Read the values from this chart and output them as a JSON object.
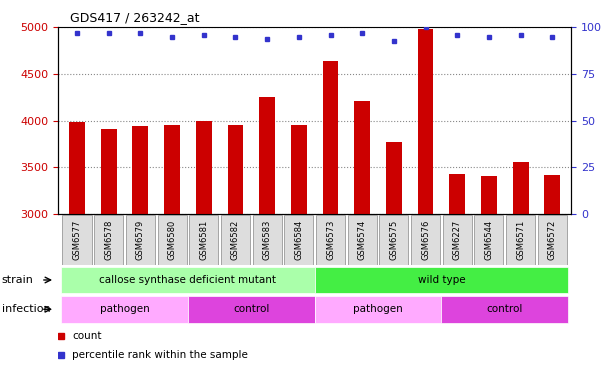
{
  "title": "GDS417 / 263242_at",
  "samples": [
    "GSM6577",
    "GSM6578",
    "GSM6579",
    "GSM6580",
    "GSM6581",
    "GSM6582",
    "GSM6583",
    "GSM6584",
    "GSM6573",
    "GSM6574",
    "GSM6575",
    "GSM6576",
    "GSM6227",
    "GSM6544",
    "GSM6571",
    "GSM6572"
  ],
  "counts": [
    3985,
    3910,
    3945,
    3960,
    3995,
    3950,
    4260,
    3950,
    4640,
    4210,
    3775,
    4980,
    3435,
    3410,
    3555,
    3415
  ],
  "percentiles": [
    97,
    97,
    97,
    95,
    96,
    95,
    94,
    95,
    96,
    97,
    93,
    100,
    96,
    95,
    96,
    95
  ],
  "ylim_left": [
    3000,
    5000
  ],
  "ylim_right": [
    0,
    100
  ],
  "yticks_left": [
    3000,
    3500,
    4000,
    4500,
    5000
  ],
  "yticks_right": [
    0,
    25,
    50,
    75,
    100
  ],
  "bar_color": "#cc0000",
  "dot_color": "#3333cc",
  "bar_width": 0.5,
  "strain_labels": [
    {
      "text": "callose synthase deficient mutant",
      "start": 0,
      "end": 8,
      "color": "#aaffaa"
    },
    {
      "text": "wild type",
      "start": 8,
      "end": 16,
      "color": "#44ee44"
    }
  ],
  "infection_labels": [
    {
      "text": "pathogen",
      "start": 0,
      "end": 4,
      "color": "#ffaaff"
    },
    {
      "text": "control",
      "start": 4,
      "end": 8,
      "color": "#dd44dd"
    },
    {
      "text": "pathogen",
      "start": 8,
      "end": 12,
      "color": "#ffaaff"
    },
    {
      "text": "control",
      "start": 12,
      "end": 16,
      "color": "#dd44dd"
    }
  ],
  "legend_items": [
    {
      "label": "count",
      "color": "#cc0000"
    },
    {
      "label": "percentile rank within the sample",
      "color": "#3333cc"
    }
  ],
  "tick_label_color_left": "#cc0000",
  "tick_label_color_right": "#3333cc",
  "grid_color": "#888888",
  "sample_box_color": "#dddddd",
  "sample_box_edge": "#888888",
  "title_fontsize": 9,
  "tick_fontsize": 8,
  "sample_fontsize": 6,
  "label_fontsize": 8,
  "row_fontsize": 7.5,
  "legend_fontsize": 7.5
}
